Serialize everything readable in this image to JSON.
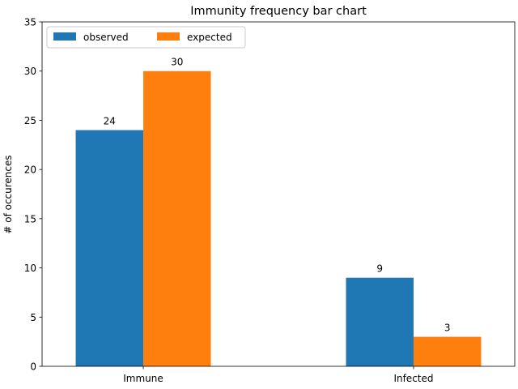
{
  "chart_data": {
    "type": "bar",
    "title": "Immunity frequency bar chart",
    "xlabel": "",
    "ylabel": "# of occurences",
    "categories": [
      "Immune",
      "Infected"
    ],
    "series": [
      {
        "name": "observed",
        "values": [
          24,
          9
        ],
        "color": "#1f77b4"
      },
      {
        "name": "expected",
        "values": [
          30,
          3
        ],
        "color": "#ff7f0e"
      }
    ],
    "ylim": [
      0,
      35
    ],
    "yticks": [
      0,
      5,
      10,
      15,
      20,
      25,
      30,
      35
    ],
    "data_labels": true,
    "legend": {
      "placement": "top-left",
      "columns": 2
    },
    "grid": false
  }
}
